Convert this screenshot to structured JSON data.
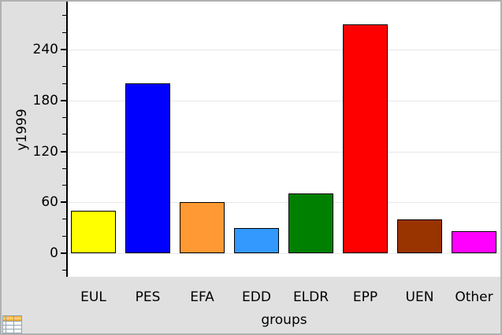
{
  "window": {
    "background_color": "#e0e0e0",
    "frame_color": "#b1b1b1",
    "plot_background": "#ffffff",
    "gridline_color": "#e7e7e7"
  },
  "chart_data": {
    "type": "bar",
    "title": "",
    "xlabel": "groups",
    "ylabel": "y1999",
    "categories": [
      "EUL",
      "PES",
      "EFA",
      "EDD",
      "ELDR",
      "EPP",
      "UEN",
      "Other"
    ],
    "values": [
      50,
      200,
      60,
      30,
      70,
      270,
      40,
      26
    ],
    "bar_colors": [
      "#ffff00",
      "#0000ff",
      "#ff9933",
      "#3399ff",
      "#008000",
      "#ff0000",
      "#993300",
      "#ff00ff"
    ],
    "bar_outline_color": "#000000",
    "ylim": [
      -25,
      297
    ],
    "yticks_major": [
      0,
      60,
      120,
      180,
      240
    ],
    "ytick_minor_step": 20,
    "ytick_minor_min": -20,
    "ytick_minor_max": 280,
    "grid": "horizontal-major-gridlines",
    "legend": "none"
  },
  "icons": {
    "spreadsheet_icon": "lists-and-spreadsheet-table"
  }
}
